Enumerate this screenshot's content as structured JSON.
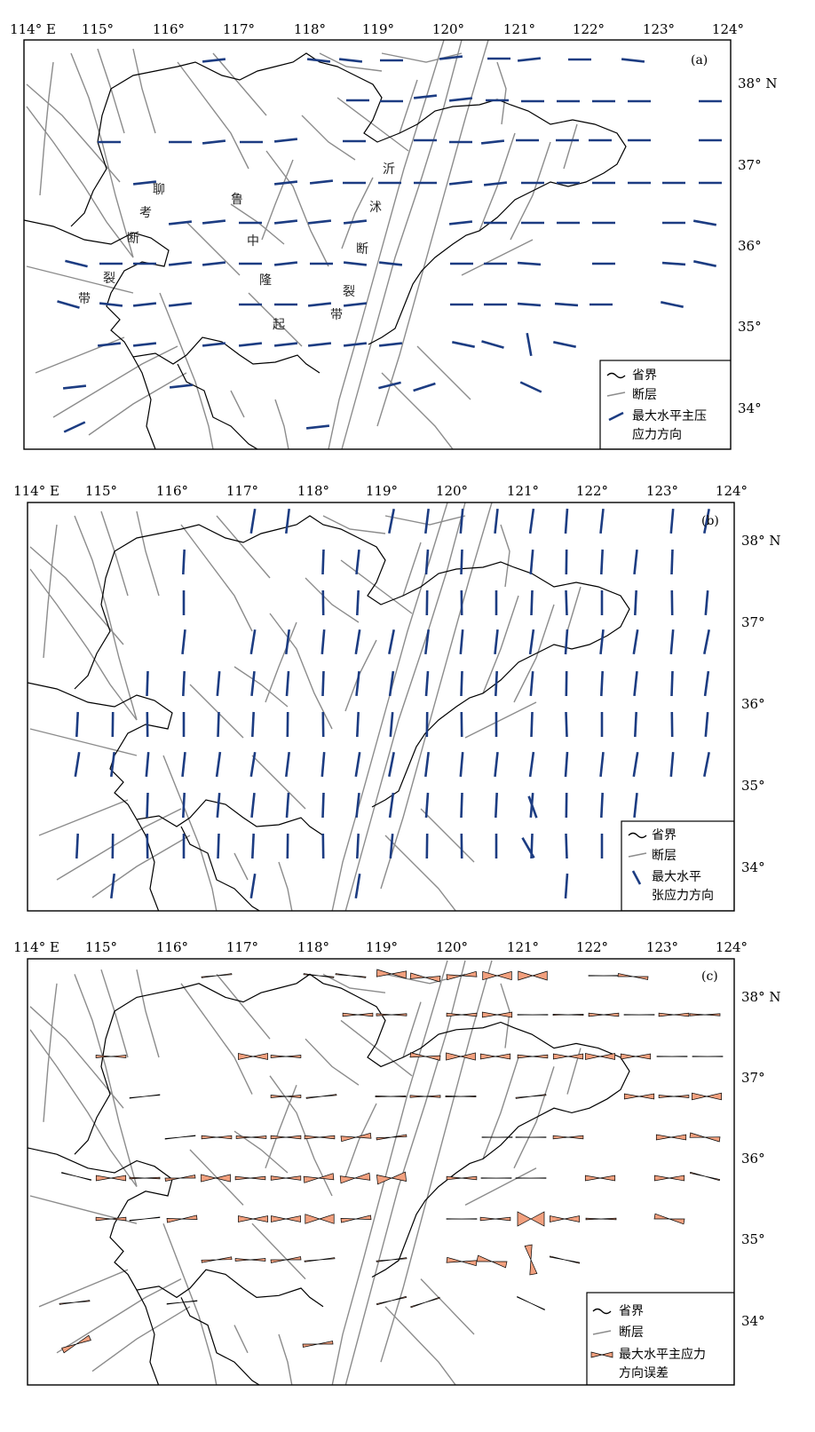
{
  "top_lon_labels": [
    "114° E",
    "115°",
    "116°",
    "117°",
    "118°",
    "119°",
    "120°",
    "121°",
    "122°",
    "123°",
    "124°"
  ],
  "lat_labels": [
    "38° N",
    "37°",
    "36°",
    "35°",
    "34°"
  ],
  "colors": {
    "stress": "#1c3c82",
    "fault": "#8c8c8c",
    "boundary": "#000000",
    "bow": "#f2a07e"
  },
  "panels": [
    {
      "id": "a",
      "tag": "(a)",
      "legend": {
        "province": "省界",
        "fault": "断层",
        "stress_line1": "最大水平主压",
        "stress_line2": "应力方向"
      },
      "annotations": [
        "聊",
        "考",
        "断",
        "裂",
        "带",
        "鲁",
        "中",
        "隆",
        "起",
        "沂",
        "沭",
        "断",
        "裂",
        "带"
      ]
    },
    {
      "id": "b",
      "tag": "(b)",
      "legend": {
        "province": "省界",
        "fault": "断层",
        "stress_line1": "最大水平",
        "stress_line2": "张应力方向"
      }
    },
    {
      "id": "c",
      "tag": "(c)",
      "legend": {
        "province": "省界",
        "fault": "断层",
        "stress_line1": "最大水平主应力",
        "stress_line2": "方向误差"
      }
    }
  ]
}
